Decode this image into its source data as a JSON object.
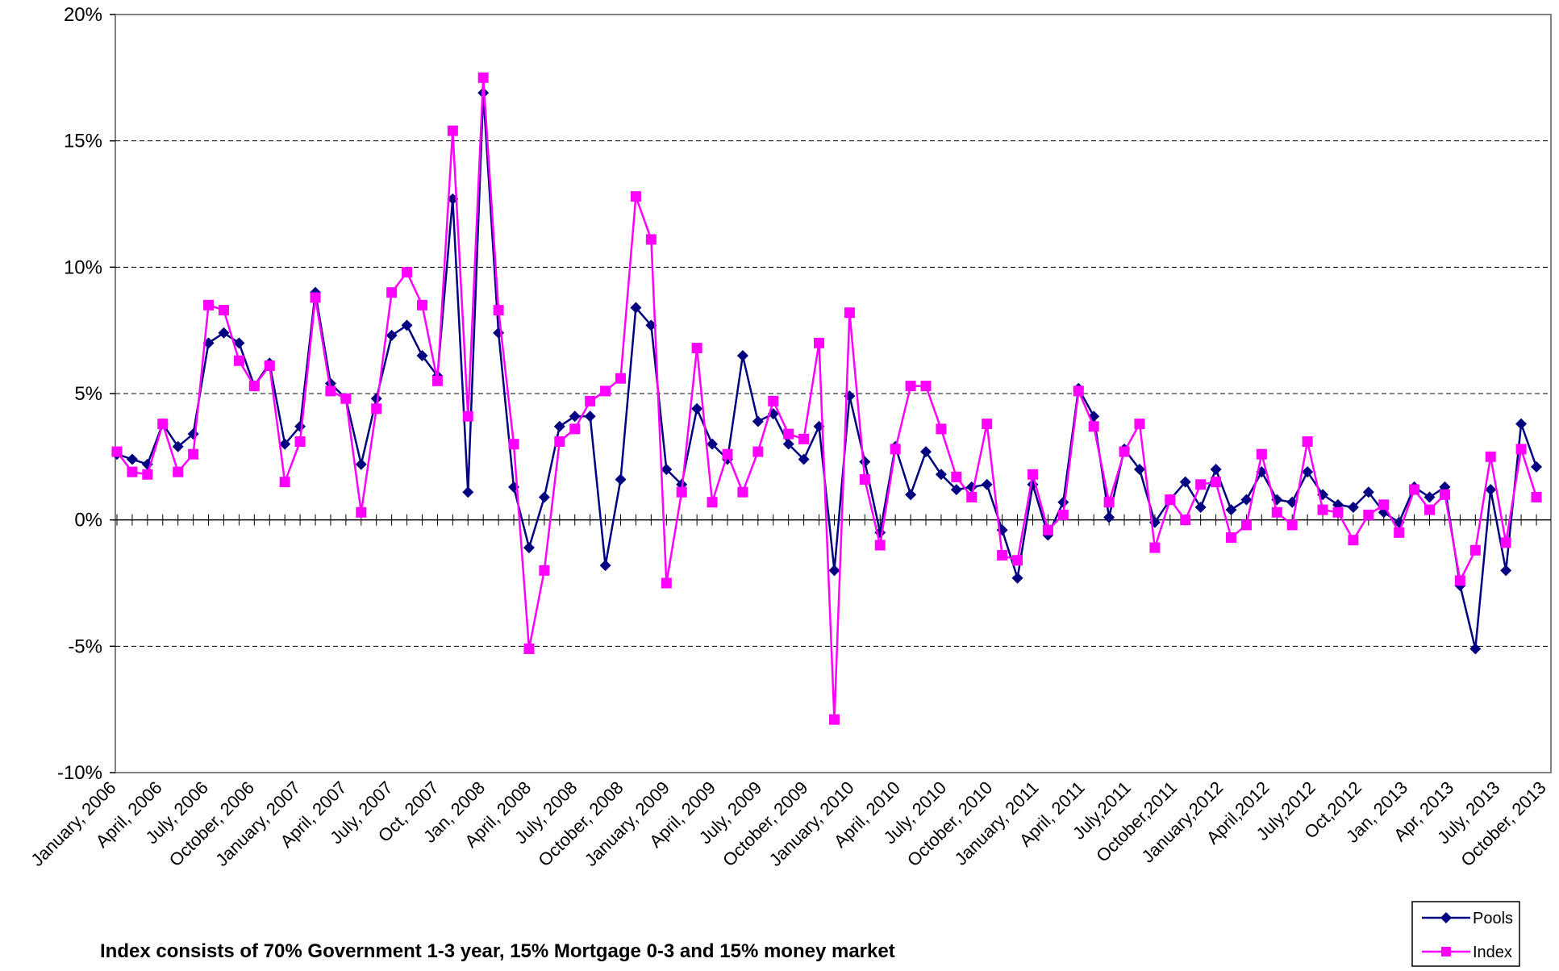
{
  "chart_data": {
    "type": "line",
    "title": "",
    "xlabel": "",
    "ylabel": "",
    "ylim": [
      -10,
      20
    ],
    "y_ticks": [
      "-10%",
      "-5%",
      "0%",
      "5%",
      "10%",
      "15%",
      "20%"
    ],
    "y_tick_values": [
      -10,
      -5,
      0,
      5,
      10,
      15,
      20
    ],
    "grid": "horizontal dashed",
    "legend_position": "bottom-right",
    "x_tick_labels": [
      "January, 2006",
      "April, 2006",
      "July, 2006",
      "October, 2006",
      "January, 2007",
      "April, 2007",
      "July, 2007",
      "Oct, 2007",
      "Jan, 2008",
      "April, 2008",
      "July, 2008",
      "October, 2008",
      "January, 2009",
      "April, 2009",
      "July, 2009",
      "October, 2009",
      "January, 2010",
      "April, 2010",
      "July, 2010",
      "October, 2010",
      "January, 2011",
      "April, 2011",
      "July,2011",
      "October,2011",
      "January,2012",
      "April,2012",
      "July,2012",
      "Oct,2012",
      "Jan, 2013",
      "Apr, 2013",
      "July, 2013",
      "October, 2013"
    ],
    "series": [
      {
        "name": "Pools",
        "color": "#000080",
        "marker": "diamond",
        "values": [
          2.6,
          2.4,
          2.2,
          3.8,
          2.9,
          3.4,
          7.0,
          7.4,
          7.0,
          5.3,
          6.2,
          3.0,
          3.7,
          9.0,
          5.4,
          4.8,
          2.2,
          4.8,
          7.3,
          7.7,
          6.5,
          5.7,
          12.7,
          1.1,
          16.9,
          7.4,
          1.3,
          -1.1,
          0.9,
          3.7,
          4.1,
          4.1,
          -1.8,
          1.6,
          8.4,
          7.7,
          2.0,
          1.4,
          4.4,
          3.0,
          2.4,
          6.5,
          3.9,
          4.2,
          3.0,
          2.4,
          3.7,
          -2.0,
          4.9,
          2.3,
          -0.5,
          2.9,
          1.0,
          2.7,
          1.8,
          1.2,
          1.3,
          1.4,
          -0.4,
          -2.3,
          1.4,
          -0.6,
          0.7,
          5.2,
          4.1,
          0.1,
          2.8,
          2.0,
          -0.1,
          0.8,
          1.5,
          0.5,
          2.0,
          0.4,
          0.8,
          1.9,
          0.8,
          0.7,
          1.9,
          1.0,
          0.6,
          0.5,
          1.1,
          0.3,
          -0.1,
          1.3,
          0.9,
          1.3,
          -2.6,
          -5.1,
          1.2,
          -2.0,
          3.8,
          2.1
        ]
      },
      {
        "name": "Index",
        "color": "#ff00ff",
        "marker": "square",
        "values": [
          2.7,
          1.9,
          1.8,
          3.8,
          1.9,
          2.6,
          8.5,
          8.3,
          6.3,
          5.3,
          6.1,
          1.5,
          3.1,
          8.8,
          5.1,
          4.8,
          0.3,
          4.4,
          9.0,
          9.8,
          8.5,
          5.5,
          15.4,
          4.1,
          17.5,
          8.3,
          3.0,
          -5.1,
          -2.0,
          3.1,
          3.6,
          4.7,
          5.1,
          5.6,
          12.8,
          11.1,
          -2.5,
          1.1,
          6.8,
          0.7,
          2.6,
          1.1,
          2.7,
          4.7,
          3.4,
          3.2,
          7.0,
          -7.9,
          8.2,
          1.6,
          -1.0,
          2.8,
          5.3,
          5.3,
          3.6,
          1.7,
          0.9,
          3.8,
          -1.4,
          -1.6,
          1.8,
          -0.4,
          0.2,
          5.1,
          3.7,
          0.7,
          2.7,
          3.8,
          -1.1,
          0.8,
          0.0,
          1.4,
          1.5,
          -0.7,
          -0.2,
          2.6,
          0.3,
          -0.2,
          3.1,
          0.4,
          0.3,
          -0.8,
          0.2,
          0.6,
          -0.5,
          1.2,
          0.4,
          1.0,
          -2.4,
          -1.2,
          2.5,
          -0.9,
          2.8,
          0.9
        ]
      }
    ]
  },
  "footnote": "Index consists of 70% Government 1-3 year, 15% Mortgage 0-3 and 15% money market"
}
